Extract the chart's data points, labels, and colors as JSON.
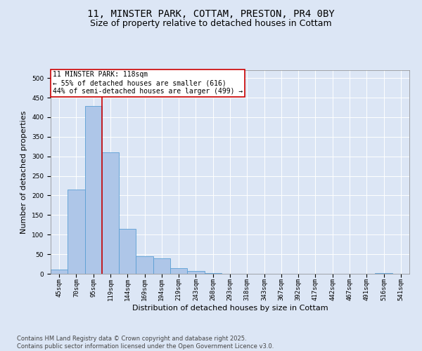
{
  "title_line1": "11, MINSTER PARK, COTTAM, PRESTON, PR4 0BY",
  "title_line2": "Size of property relative to detached houses in Cottam",
  "xlabel": "Distribution of detached houses by size in Cottam",
  "ylabel": "Number of detached properties",
  "categories": [
    "45sqm",
    "70sqm",
    "95sqm",
    "119sqm",
    "144sqm",
    "169sqm",
    "194sqm",
    "219sqm",
    "243sqm",
    "268sqm",
    "293sqm",
    "318sqm",
    "343sqm",
    "367sqm",
    "392sqm",
    "417sqm",
    "442sqm",
    "467sqm",
    "491sqm",
    "516sqm",
    "541sqm"
  ],
  "values": [
    10,
    216,
    428,
    310,
    115,
    45,
    40,
    15,
    8,
    1,
    0,
    0,
    0,
    0,
    0,
    0,
    0,
    0,
    0,
    1,
    0
  ],
  "bar_color": "#aec6e8",
  "bar_edge_color": "#5a9fd4",
  "vline_color": "#cc0000",
  "annotation_line1": "11 MINSTER PARK: 118sqm",
  "annotation_line2": "← 55% of detached houses are smaller (616)",
  "annotation_line3": "44% of semi-detached houses are larger (499) →",
  "annotation_box_color": "#cc0000",
  "ylim": [
    0,
    520
  ],
  "yticks": [
    0,
    50,
    100,
    150,
    200,
    250,
    300,
    350,
    400,
    450,
    500
  ],
  "bg_color": "#dce6f5",
  "plot_bg_color": "#dce6f5",
  "footer_line1": "Contains HM Land Registry data © Crown copyright and database right 2025.",
  "footer_line2": "Contains public sector information licensed under the Open Government Licence v3.0.",
  "title_fontsize": 10,
  "subtitle_fontsize": 9,
  "axis_label_fontsize": 8,
  "tick_fontsize": 6.5,
  "annotation_fontsize": 7,
  "footer_fontsize": 6
}
